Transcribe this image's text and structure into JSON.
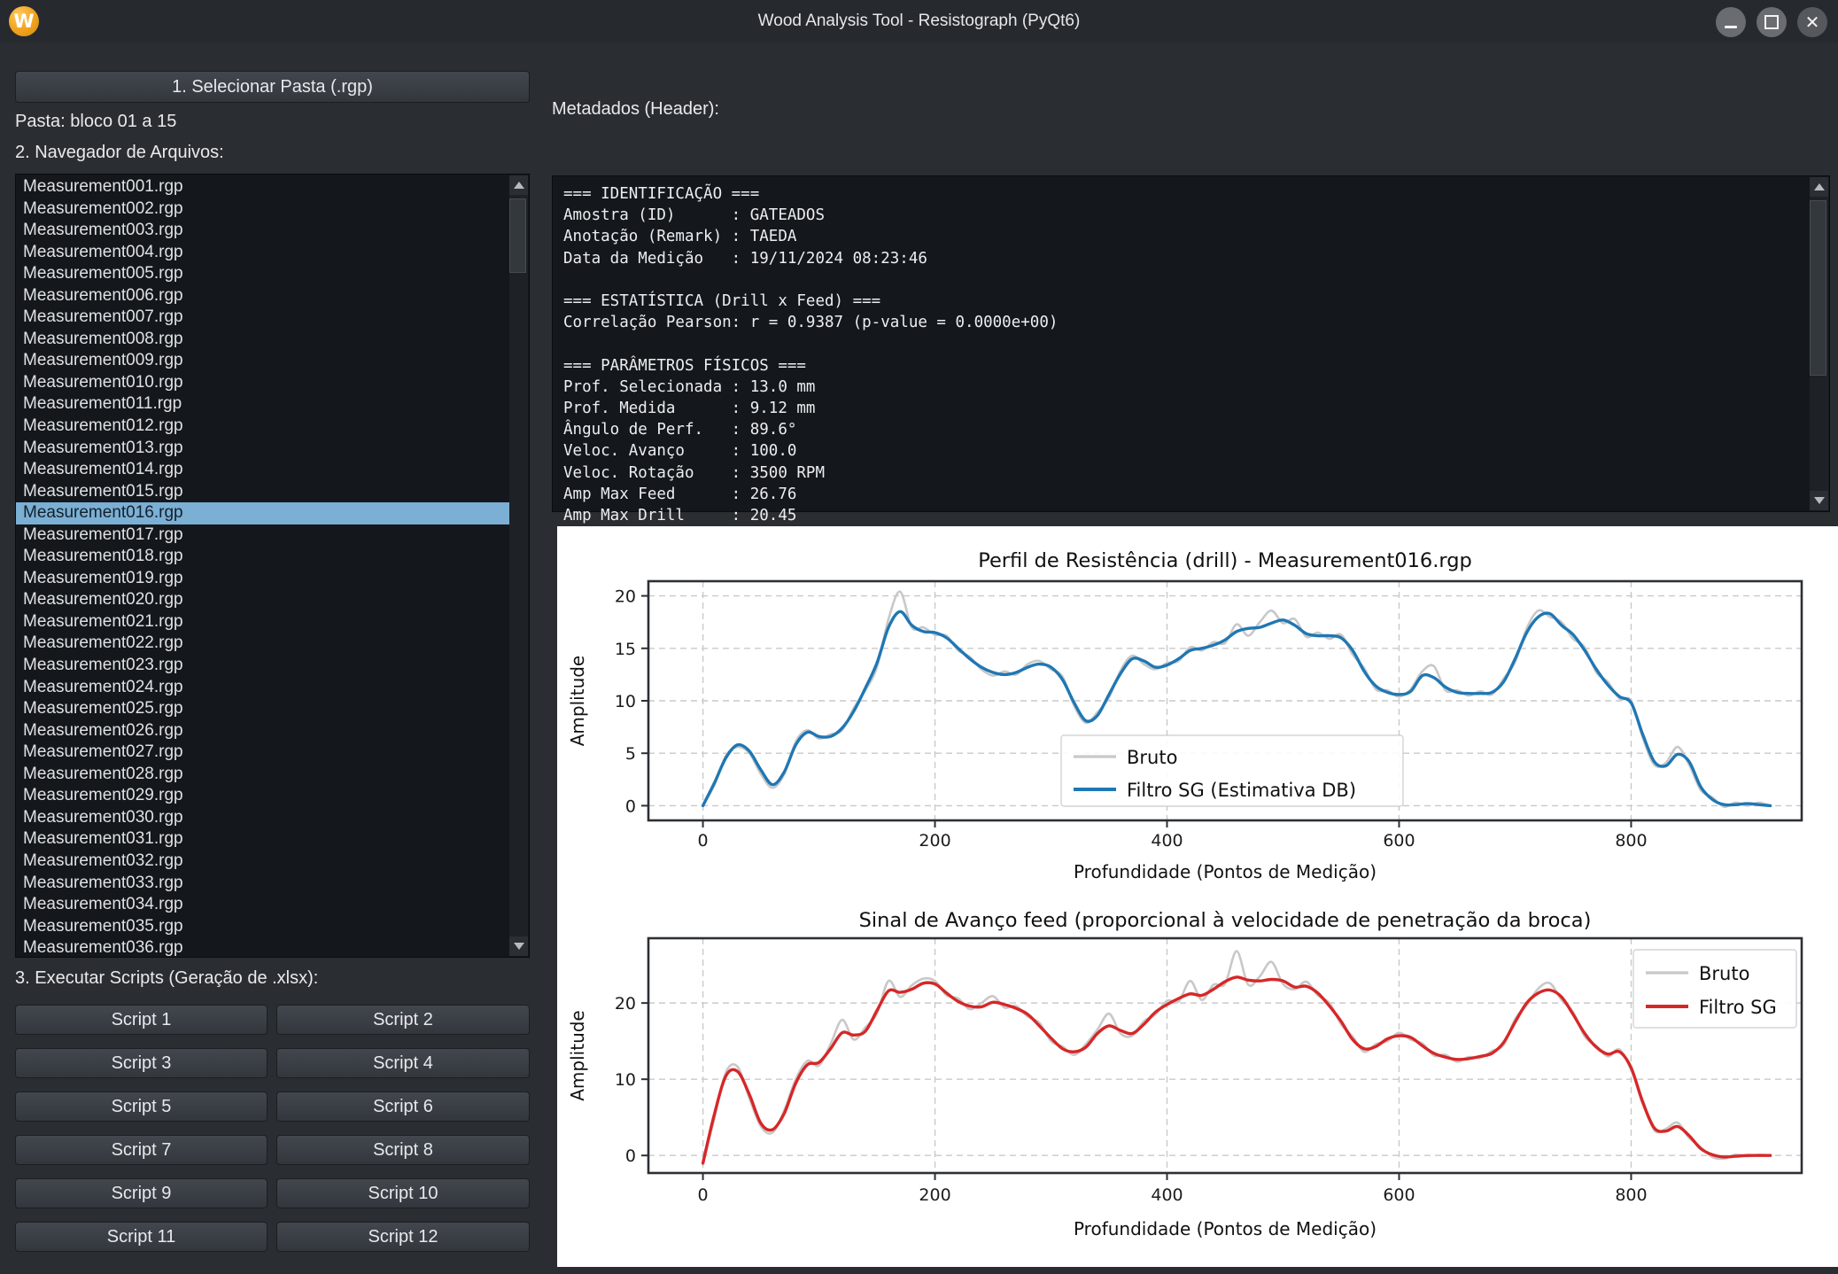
{
  "window": {
    "title": "Wood Analysis Tool - Resistograph (PyQt6)",
    "logo_letter": "W"
  },
  "sidebar": {
    "select_folder_button": "1. Selecionar Pasta (.rgp)",
    "folder_label": "Pasta: bloco 01 a 15",
    "browser_label": "2. Navegador de Arquivos:",
    "selected_index": 15,
    "files": [
      "Measurement001.rgp",
      "Measurement002.rgp",
      "Measurement003.rgp",
      "Measurement004.rgp",
      "Measurement005.rgp",
      "Measurement006.rgp",
      "Measurement007.rgp",
      "Measurement008.rgp",
      "Measurement009.rgp",
      "Measurement010.rgp",
      "Measurement011.rgp",
      "Measurement012.rgp",
      "Measurement013.rgp",
      "Measurement014.rgp",
      "Measurement015.rgp",
      "Measurement016.rgp",
      "Measurement017.rgp",
      "Measurement018.rgp",
      "Measurement019.rgp",
      "Measurement020.rgp",
      "Measurement021.rgp",
      "Measurement022.rgp",
      "Measurement023.rgp",
      "Measurement024.rgp",
      "Measurement025.rgp",
      "Measurement026.rgp",
      "Measurement027.rgp",
      "Measurement028.rgp",
      "Measurement029.rgp",
      "Measurement030.rgp",
      "Measurement031.rgp",
      "Measurement032.rgp",
      "Measurement033.rgp",
      "Measurement034.rgp",
      "Measurement035.rgp",
      "Measurement036.rgp"
    ],
    "scripts_label": "3. Executar Scripts (Geração de .xlsx):",
    "script_buttons": [
      "Script 1",
      "Script 2",
      "Script 3",
      "Script 4",
      "Script 5",
      "Script 6",
      "Script 7",
      "Script 8",
      "Script 9",
      "Script 10",
      "Script 11",
      "Script 12"
    ]
  },
  "metadata": {
    "label": "Metadados (Header):",
    "lines": [
      "=== IDENTIFICAÇÃO ===",
      "Amostra (ID)      : GATEADOS",
      "Anotação (Remark) : TAEDA",
      "Data da Medição   : 19/11/2024 08:23:46",
      "",
      "=== ESTATÍSTICA (Drill x Feed) ===",
      "Correlação Pearson: r = 0.9387 (p-value = 0.0000e+00)",
      "",
      "=== PARÂMETROS FÍSICOS ===",
      "Prof. Selecionada : 13.0 mm",
      "Prof. Medida      : 9.12 mm",
      "Ângulo de Perf.   : 89.6°",
      "Veloc. Avanço     : 100.0",
      "Veloc. Rotação    : 3500 RPM",
      "Amp Max Feed      : 26.76",
      "Amp Max Drill     : 20.45"
    ]
  },
  "chart_data": [
    {
      "type": "line",
      "title": "Perfil de Resistência (drill) - Measurement016.rgp",
      "xlabel": "Profundidade (Pontos de Medição)",
      "ylabel": "Amplitude",
      "xticks": [
        0,
        200,
        400,
        600,
        800
      ],
      "yticks": [
        0,
        5,
        10,
        15,
        20
      ],
      "xlim": [
        -47,
        947
      ],
      "ylim": [
        -1.4,
        21.4
      ],
      "grid": "dashed",
      "legend_position": "lower-center",
      "x_start": 0,
      "x_step": 10,
      "series": [
        {
          "name": "bruto",
          "label": "Bruto",
          "color": "#c8c8c8",
          "width": 2.6,
          "values": [
            0,
            2.0,
            4.8,
            5.6,
            5.0,
            3.0,
            1.7,
            3.0,
            6.1,
            7.2,
            6.4,
            6.8,
            7.2,
            9.3,
            11.0,
            13.2,
            17.8,
            20.4,
            17.0,
            17.0,
            16.3,
            16.2,
            14.8,
            14.2,
            13.0,
            12.4,
            12.8,
            12.5,
            13.5,
            13.8,
            13.0,
            12.3,
            9.5,
            7.9,
            8.9,
            10.3,
            12.9,
            14.3,
            13.5,
            13.0,
            13.6,
            13.8,
            15.1,
            14.8,
            15.6,
            15.5,
            17.3,
            16.2,
            17.5,
            18.6,
            17.4,
            17.8,
            16.1,
            16.5,
            15.9,
            16.3,
            14.4,
            13.1,
            11.1,
            11.0,
            10.4,
            11.1,
            12.8,
            13.3,
            11.0,
            11.0,
            10.5,
            10.9,
            10.6,
            12.1,
            13.7,
            16.9,
            18.6,
            18.0,
            17.5,
            15.9,
            15.1,
            12.7,
            11.8,
            10.2,
            10.0,
            6.5,
            3.9,
            4.1,
            5.6,
            3.9,
            1.5,
            0.8,
            -0.1,
            0.3,
            0.0,
            0.3,
            0.0
          ]
        },
        {
          "name": "filtro-sg",
          "label": "Filtro SG (Estimativa DB)",
          "color": "#1f77b4",
          "width": 3.4,
          "values": [
            0,
            2.2,
            4.6,
            5.8,
            5.2,
            3.4,
            2.0,
            3.2,
            5.8,
            7.0,
            6.6,
            6.6,
            7.4,
            9.0,
            11.2,
            13.6,
            17.0,
            18.5,
            17.2,
            16.6,
            16.5,
            16.0,
            15.0,
            14.0,
            13.2,
            12.7,
            12.5,
            12.7,
            13.2,
            13.5,
            13.2,
            12.0,
            9.8,
            8.1,
            8.6,
            10.6,
            12.6,
            14.0,
            13.8,
            13.2,
            13.4,
            14.0,
            14.8,
            15.0,
            15.3,
            15.8,
            16.6,
            16.9,
            17.0,
            17.4,
            17.7,
            17.2,
            16.4,
            16.2,
            16.2,
            16.0,
            14.8,
            12.8,
            11.4,
            10.8,
            10.6,
            10.9,
            12.4,
            12.2,
            11.3,
            10.8,
            10.7,
            10.7,
            10.8,
            11.8,
            14.0,
            16.5,
            18.0,
            18.3,
            17.2,
            16.3,
            14.8,
            13.0,
            11.5,
            10.4,
            9.8,
            6.8,
            4.2,
            3.8,
            4.9,
            4.2,
            1.8,
            0.6,
            0.1,
            0.1,
            0.2,
            0.1,
            0.0
          ]
        }
      ]
    },
    {
      "type": "line",
      "title": "Sinal de Avanço feed (proporcional à velocidade de penetração da broca)",
      "xlabel": "Profundidade (Pontos de Medição)",
      "ylabel": "Amplitude",
      "xticks": [
        0,
        200,
        400,
        600,
        800
      ],
      "yticks": [
        0,
        10,
        20
      ],
      "xlim": [
        -47,
        947
      ],
      "ylim": [
        -2.3,
        28.5
      ],
      "grid": "dashed",
      "legend_position": "upper-right",
      "x_start": 0,
      "x_step": 10,
      "series": [
        {
          "name": "bruto",
          "label": "Bruto",
          "color": "#c8c8c8",
          "width": 2.6,
          "values": [
            -1.2,
            5.0,
            11.0,
            11.6,
            7.5,
            3.8,
            3.0,
            5.9,
            10.0,
            12.4,
            11.8,
            14.6,
            17.8,
            15.2,
            16.8,
            18.6,
            22.9,
            20.8,
            22.3,
            23.2,
            22.9,
            21.0,
            20.6,
            19.2,
            20.0,
            20.9,
            19.4,
            19.6,
            18.2,
            17.4,
            15.0,
            14.3,
            13.2,
            14.6,
            16.5,
            18.6,
            16.0,
            15.7,
            17.6,
            18.5,
            20.3,
            20.2,
            22.9,
            20.4,
            22.4,
            22.5,
            26.8,
            22.4,
            23.5,
            25.4,
            22.5,
            21.8,
            22.8,
            21.0,
            20.0,
            17.2,
            15.6,
            13.6,
            14.6,
            15.0,
            16.1,
            15.2,
            14.7,
            13.1,
            13.2,
            12.3,
            12.9,
            12.8,
            13.7,
            14.5,
            17.9,
            19.7,
            21.9,
            22.6,
            20.4,
            18.8,
            15.6,
            14.4,
            13.0,
            13.9,
            11.2,
            7.3,
            3.3,
            3.5,
            4.3,
            2.3,
            1.1,
            -0.2,
            -0.4,
            0.1,
            -0.1,
            0.1,
            0.0
          ]
        },
        {
          "name": "filtro-sg",
          "label": "Filtro SG",
          "color": "#d62728",
          "width": 3.4,
          "values": [
            -1.0,
            5.5,
            10.5,
            11.0,
            8.0,
            4.2,
            3.4,
            5.5,
            9.5,
            11.9,
            12.2,
            14.0,
            16.1,
            15.8,
            16.3,
            19.0,
            21.6,
            21.4,
            21.8,
            22.6,
            22.5,
            21.3,
            20.2,
            19.6,
            19.5,
            20.1,
            19.8,
            19.3,
            18.5,
            17.0,
            15.4,
            14.0,
            13.6,
            14.2,
            16.0,
            17.0,
            16.4,
            16.0,
            17.2,
            18.8,
            19.8,
            20.6,
            21.2,
            21.0,
            21.8,
            22.8,
            23.4,
            23.0,
            22.9,
            23.1,
            22.9,
            22.1,
            22.2,
            21.3,
            19.6,
            17.6,
            15.2,
            14.0,
            14.3,
            15.3,
            15.7,
            15.5,
            14.4,
            13.4,
            12.9,
            12.6,
            12.7,
            13.0,
            13.4,
            14.8,
            17.5,
            20.0,
            21.3,
            21.7,
            20.8,
            18.5,
            16.0,
            14.2,
            13.3,
            13.6,
            11.5,
            7.0,
            3.6,
            3.2,
            3.8,
            2.6,
            0.9,
            0.1,
            -0.2,
            -0.1,
            0.0,
            0.0,
            0.0
          ]
        }
      ]
    }
  ],
  "colors": {
    "window_bg": "#2a2d31",
    "panel_bg": "#14181c",
    "selection": "#7bafd4",
    "accent_blue": "#1f77b4",
    "accent_red": "#d62728",
    "bruto_gray": "#c8c8c8",
    "logo_orange": "#f0a11c"
  }
}
